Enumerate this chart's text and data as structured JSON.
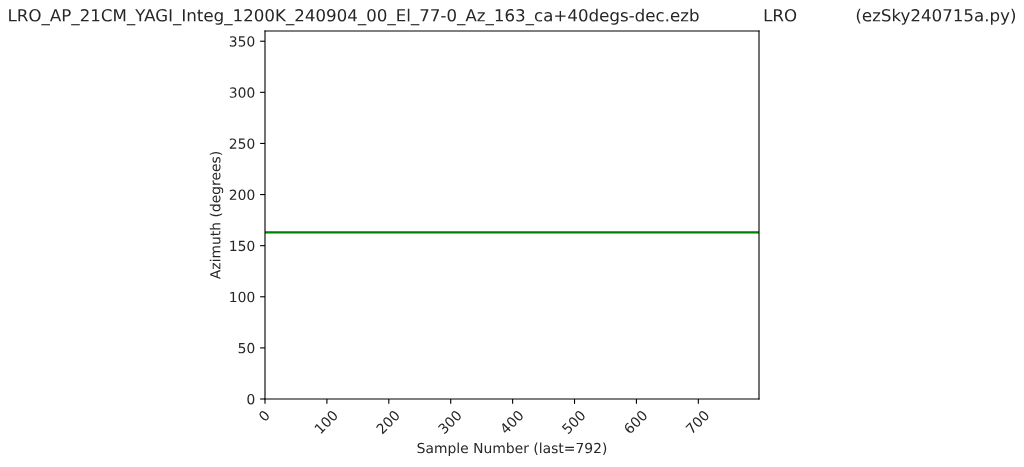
{
  "chart_data": {
    "type": "line",
    "title": "LRO_AP_21CM_YAGI_Integ_1200K_240904_00_El_77-0_Az_163_ca+40degs-dec.ezb            LRO           (ezSky240715a.py)",
    "xlabel": "Sample Number (last=792)",
    "ylabel": "Azimuth (degrees)",
    "series": [
      {
        "color": "#008000",
        "x": [
          0,
          798
        ],
        "values": [
          163,
          163
        ]
      }
    ],
    "xlim": [
      0,
      798
    ],
    "xticks": [
      0,
      100,
      200,
      300,
      400,
      500,
      600,
      700
    ],
    "ylim": [
      0,
      360
    ],
    "yticks": [
      0,
      50,
      100,
      150,
      200,
      250,
      300,
      350
    ],
    "grid": false,
    "legend": false,
    "marker": "none",
    "line_style": "solid"
  }
}
